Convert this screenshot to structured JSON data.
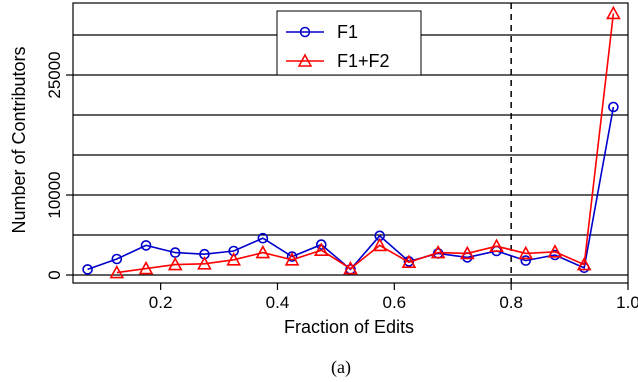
{
  "caption": "(a)",
  "chart_data": {
    "type": "line",
    "xlabel": "Fraction of Edits",
    "ylabel": "Number of Contributors",
    "xlim": [
      0.05,
      1.0
    ],
    "ylim": [
      -1000,
      34000
    ],
    "xticks": [
      0.2,
      0.4,
      0.6,
      0.8,
      1.0
    ],
    "xtick_labels": [
      "0.2",
      "0.4",
      "0.6",
      "0.8",
      "1.0"
    ],
    "yticks": [
      0,
      10000,
      25000
    ],
    "ytick_labels": [
      "0",
      "10000",
      "25000"
    ],
    "grid": "horizontal",
    "legend_position": "top-center",
    "vertical_reference_line": {
      "x": 0.8,
      "style": "dashed"
    },
    "series": [
      {
        "name": "F1",
        "color": "#0000cc",
        "marker": "circle",
        "x": [
          0.075,
          0.125,
          0.175,
          0.225,
          0.275,
          0.325,
          0.375,
          0.425,
          0.475,
          0.525,
          0.575,
          0.625,
          0.675,
          0.725,
          0.775,
          0.825,
          0.875,
          0.925,
          0.975
        ],
        "y": [
          700,
          2000,
          3700,
          2800,
          2600,
          3000,
          4600,
          2300,
          3800,
          700,
          4900,
          1700,
          2700,
          2200,
          3000,
          1800,
          2500,
          900,
          21000
        ]
      },
      {
        "name": "F1+F2",
        "color": "#ff0000",
        "marker": "triangle",
        "x": [
          0.125,
          0.175,
          0.225,
          0.275,
          0.325,
          0.375,
          0.425,
          0.475,
          0.525,
          0.575,
          0.625,
          0.675,
          0.725,
          0.775,
          0.825,
          0.875,
          0.925,
          0.975
        ],
        "y": [
          300,
          800,
          1300,
          1400,
          1900,
          2800,
          1900,
          3100,
          800,
          3700,
          1600,
          2800,
          2700,
          3600,
          2700,
          2900,
          1300,
          32700
        ]
      }
    ]
  }
}
